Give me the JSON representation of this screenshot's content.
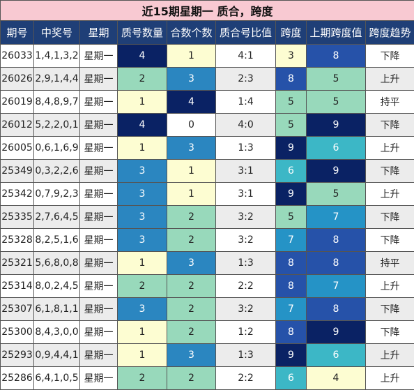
{
  "title": "近15期星期一 质合，跨度",
  "columns": [
    "期号",
    "中奖号",
    "星期",
    "质号数量",
    "合数个数",
    "质合号比值",
    "跨度",
    "上期跨度值",
    "跨度趋势"
  ],
  "colors": {
    "1": "#fdfdd2",
    "2": "#98d9bb",
    "3": "#2b86c0",
    "4": "#0a2264",
    "0": "#ffffff",
    "range_scale": {
      "3": "#fdfdd2",
      "4": "#fdfdd2",
      "5": "#98d9bb",
      "6": "#3cb7c6",
      "7": "#2593c6",
      "8": "#2652a9",
      "9": "#0a2264"
    }
  },
  "rows": [
    {
      "issue": "26033",
      "numbers": "1,4,1,3,2",
      "weekday": "星期一",
      "prime": "4",
      "composite": "1",
      "ratio": "4:1",
      "span": "3",
      "prev_span": "8",
      "trend": "下降"
    },
    {
      "issue": "26026",
      "numbers": "2,9,1,4,4",
      "weekday": "星期一",
      "prime": "2",
      "composite": "3",
      "ratio": "2:3",
      "span": "8",
      "prev_span": "5",
      "trend": "上升"
    },
    {
      "issue": "26019",
      "numbers": "8,4,8,9,7",
      "weekday": "星期一",
      "prime": "1",
      "composite": "4",
      "ratio": "1:4",
      "span": "5",
      "prev_span": "5",
      "trend": "持平"
    },
    {
      "issue": "26012",
      "numbers": "5,2,2,0,1",
      "weekday": "星期一",
      "prime": "4",
      "composite": "0",
      "ratio": "4:0",
      "span": "5",
      "prev_span": "9",
      "trend": "下降"
    },
    {
      "issue": "26005",
      "numbers": "0,6,1,6,9",
      "weekday": "星期一",
      "prime": "1",
      "composite": "3",
      "ratio": "1:3",
      "span": "9",
      "prev_span": "6",
      "trend": "上升"
    },
    {
      "issue": "25349",
      "numbers": "0,3,2,2,6",
      "weekday": "星期一",
      "prime": "3",
      "composite": "1",
      "ratio": "3:1",
      "span": "6",
      "prev_span": "9",
      "trend": "下降"
    },
    {
      "issue": "25342",
      "numbers": "0,7,9,2,3",
      "weekday": "星期一",
      "prime": "3",
      "composite": "1",
      "ratio": "3:1",
      "span": "9",
      "prev_span": "5",
      "trend": "上升"
    },
    {
      "issue": "25335",
      "numbers": "2,7,6,4,5",
      "weekday": "星期一",
      "prime": "3",
      "composite": "2",
      "ratio": "3:2",
      "span": "5",
      "prev_span": "7",
      "trend": "下降"
    },
    {
      "issue": "25328",
      "numbers": "8,2,5,1,6",
      "weekday": "星期一",
      "prime": "3",
      "composite": "2",
      "ratio": "3:2",
      "span": "7",
      "prev_span": "8",
      "trend": "下降"
    },
    {
      "issue": "25321",
      "numbers": "5,6,8,0,8",
      "weekday": "星期一",
      "prime": "1",
      "composite": "3",
      "ratio": "1:3",
      "span": "8",
      "prev_span": "8",
      "trend": "持平"
    },
    {
      "issue": "25314",
      "numbers": "8,0,2,4,5",
      "weekday": "星期一",
      "prime": "2",
      "composite": "2",
      "ratio": "2:2",
      "span": "8",
      "prev_span": "7",
      "trend": "上升"
    },
    {
      "issue": "25307",
      "numbers": "6,1,8,1,1",
      "weekday": "星期一",
      "prime": "3",
      "composite": "2",
      "ratio": "3:2",
      "span": "7",
      "prev_span": "8",
      "trend": "下降"
    },
    {
      "issue": "25300",
      "numbers": "8,4,3,0,0",
      "weekday": "星期一",
      "prime": "1",
      "composite": "2",
      "ratio": "1:2",
      "span": "8",
      "prev_span": "9",
      "trend": "下降"
    },
    {
      "issue": "25293",
      "numbers": "0,9,4,4,1",
      "weekday": "星期一",
      "prime": "1",
      "composite": "3",
      "ratio": "1:3",
      "span": "9",
      "prev_span": "6",
      "trend": "上升"
    },
    {
      "issue": "25286",
      "numbers": "6,4,1,0,5",
      "weekday": "星期一",
      "prime": "2",
      "composite": "2",
      "ratio": "2:2",
      "span": "6",
      "prev_span": "4",
      "trend": "上升"
    }
  ]
}
